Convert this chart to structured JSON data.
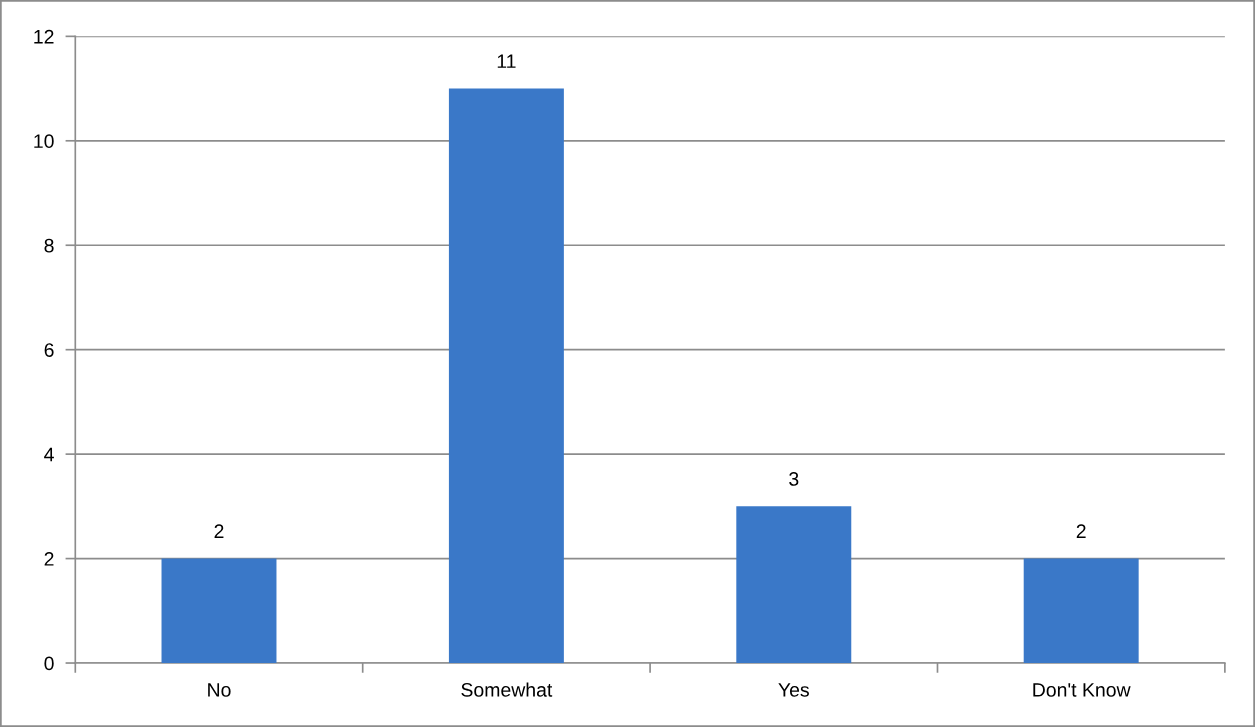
{
  "chart_data": {
    "type": "bar",
    "categories": [
      "No",
      "Somewhat",
      "Yes",
      "Don't Know"
    ],
    "values": [
      2,
      11,
      3,
      2
    ],
    "color": "#3a78c8",
    "ylim": [
      0,
      12
    ],
    "yticks": [
      0,
      2,
      4,
      6,
      8,
      10,
      12
    ],
    "grid": "y",
    "data_labels": true,
    "legend": false
  }
}
